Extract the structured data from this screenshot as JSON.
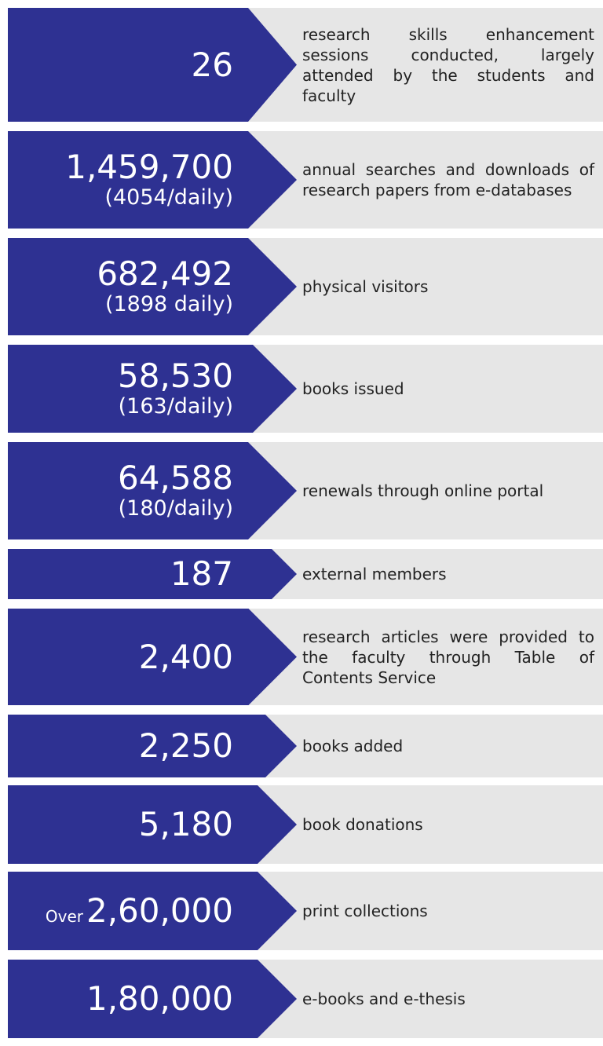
{
  "items": [
    {
      "number": "26",
      "text": "research skills enhancement sessions conducted, largely attended by the students and faculty"
    },
    {
      "number": "1,459,700",
      "sub": "(4054/daily)",
      "text": "annual searches and downloads of research papers from e-databases"
    },
    {
      "number": "682,492",
      "sub": "(1898 daily)",
      "text": "physical visitors"
    },
    {
      "number": "58,530",
      "sub": "(163/daily)",
      "text": "books issued"
    },
    {
      "number": "64,588",
      "sub": "(180/daily)",
      "text": "renewals through online portal"
    },
    {
      "number": "187",
      "text": "external members"
    },
    {
      "number": "2,400",
      "text": "research articles were provided to the faculty through Table of Contents Service"
    },
    {
      "number": "2,250",
      "text": "books added"
    },
    {
      "number": "5,180",
      "text": "book donations"
    },
    {
      "prefix": "Over",
      "number": "2,60,000",
      "text": "print collections"
    },
    {
      "number": "1,80,000",
      "text": "e-books and e-thesis"
    }
  ]
}
